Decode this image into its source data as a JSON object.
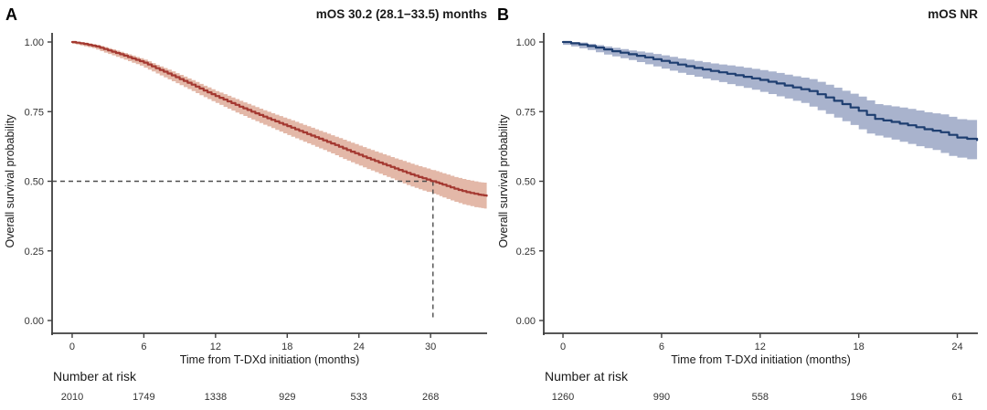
{
  "figure": {
    "background": "#ffffff",
    "axis_color": "#3f3f3f",
    "dash_color": "#4d4d4d"
  },
  "chart_data": [
    {
      "type": "line",
      "subtype": "kaplan-meier-survival",
      "panel_label": "A",
      "title": "mOS 30.2 (28.1−33.5) months",
      "xlabel": "Time from T-DXd initiation (months)",
      "ylabel": "Overall survival probability",
      "xticks": [
        0,
        6,
        12,
        18,
        24,
        30
      ],
      "ytick_labels": [
        "0.00",
        "0.25",
        "0.50",
        "0.75",
        "1.00"
      ],
      "yticks": [
        0,
        0.25,
        0.5,
        0.75,
        1.0
      ],
      "xlim": [
        -1.68,
        34.73
      ],
      "ylim": [
        0,
        1
      ],
      "grid": false,
      "legend": "none",
      "line_color": "#a43931",
      "band_color": "#e3b8a8",
      "median": {
        "time": 30.2,
        "probability": 0.5
      },
      "points": [
        [
          0,
          1.0,
          0.996,
          1.0
        ],
        [
          1,
          0.993,
          0.988,
          0.998
        ],
        [
          2,
          0.984,
          0.978,
          0.99
        ],
        [
          3,
          0.97,
          0.962,
          0.978
        ],
        [
          4,
          0.956,
          0.947,
          0.965
        ],
        [
          5,
          0.941,
          0.931,
          0.951
        ],
        [
          6,
          0.926,
          0.915,
          0.937
        ],
        [
          7,
          0.906,
          0.894,
          0.918
        ],
        [
          8,
          0.887,
          0.873,
          0.901
        ],
        [
          9,
          0.867,
          0.852,
          0.882
        ],
        [
          10,
          0.847,
          0.831,
          0.863
        ],
        [
          11,
          0.826,
          0.809,
          0.843
        ],
        [
          12,
          0.806,
          0.788,
          0.824
        ],
        [
          13,
          0.787,
          0.767,
          0.807
        ],
        [
          14,
          0.768,
          0.747,
          0.789
        ],
        [
          15,
          0.75,
          0.728,
          0.772
        ],
        [
          16,
          0.732,
          0.709,
          0.755
        ],
        [
          17,
          0.715,
          0.691,
          0.739
        ],
        [
          18,
          0.698,
          0.672,
          0.724
        ],
        [
          19,
          0.681,
          0.654,
          0.708
        ],
        [
          20,
          0.664,
          0.636,
          0.692
        ],
        [
          21,
          0.647,
          0.618,
          0.676
        ],
        [
          22,
          0.63,
          0.6,
          0.66
        ],
        [
          23,
          0.612,
          0.58,
          0.644
        ],
        [
          24,
          0.595,
          0.562,
          0.628
        ],
        [
          25,
          0.578,
          0.544,
          0.612
        ],
        [
          26,
          0.562,
          0.527,
          0.597
        ],
        [
          27,
          0.546,
          0.51,
          0.582
        ],
        [
          28,
          0.53,
          0.492,
          0.568
        ],
        [
          29,
          0.515,
          0.476,
          0.554
        ],
        [
          30,
          0.502,
          0.462,
          0.542
        ],
        [
          30.2,
          0.5,
          0.46,
          0.54
        ],
        [
          31,
          0.488,
          0.447,
          0.529
        ],
        [
          32,
          0.473,
          0.431,
          0.515
        ],
        [
          33,
          0.461,
          0.417,
          0.505
        ],
        [
          34,
          0.452,
          0.407,
          0.497
        ],
        [
          34.7,
          0.448,
          0.402,
          0.494
        ]
      ],
      "risk_table": {
        "label": "Number at risk",
        "times": [
          0,
          6,
          12,
          18,
          24,
          30
        ],
        "counts": [
          "2010",
          "1749",
          "1338",
          "929",
          "533",
          "268"
        ]
      }
    },
    {
      "type": "line",
      "subtype": "kaplan-meier-survival",
      "panel_label": "B",
      "title": "mOS NR",
      "xlabel": "Time from T-DXd initiation (months)",
      "ylabel": "Overall survival probability",
      "xticks": [
        0,
        6,
        12,
        18,
        24
      ],
      "ytick_labels": [
        "0.00",
        "0.25",
        "0.50",
        "0.75",
        "1.00"
      ],
      "yticks": [
        0,
        0.25,
        0.5,
        0.75,
        1.0
      ],
      "xlim": [
        -1.17,
        25.25
      ],
      "ylim": [
        0,
        1
      ],
      "grid": false,
      "legend": "none",
      "line_color": "#1e3e70",
      "band_color": "#a9b3cd",
      "median": null,
      "points": [
        [
          0,
          1.0,
          0.996,
          1.0
        ],
        [
          1,
          0.991,
          0.984,
          0.998
        ],
        [
          2,
          0.98,
          0.971,
          0.989
        ],
        [
          3,
          0.967,
          0.955,
          0.979
        ],
        [
          4,
          0.956,
          0.942,
          0.97
        ],
        [
          5,
          0.945,
          0.928,
          0.962
        ],
        [
          6,
          0.932,
          0.912,
          0.952
        ],
        [
          7,
          0.919,
          0.897,
          0.941
        ],
        [
          8,
          0.907,
          0.882,
          0.932
        ],
        [
          9,
          0.896,
          0.869,
          0.923
        ],
        [
          10,
          0.886,
          0.856,
          0.916
        ],
        [
          11,
          0.875,
          0.842,
          0.908
        ],
        [
          12,
          0.864,
          0.829,
          0.899
        ],
        [
          13,
          0.851,
          0.813,
          0.889
        ],
        [
          14,
          0.837,
          0.797,
          0.877
        ],
        [
          15,
          0.824,
          0.781,
          0.867
        ],
        [
          16,
          0.801,
          0.755,
          0.847
        ],
        [
          17,
          0.777,
          0.729,
          0.825
        ],
        [
          18,
          0.753,
          0.702,
          0.804
        ],
        [
          19,
          0.724,
          0.671,
          0.777
        ],
        [
          20,
          0.713,
          0.657,
          0.769
        ],
        [
          21,
          0.701,
          0.642,
          0.76
        ],
        [
          22,
          0.687,
          0.626,
          0.748
        ],
        [
          23,
          0.676,
          0.612,
          0.74
        ],
        [
          24,
          0.657,
          0.591,
          0.723
        ],
        [
          25.2,
          0.648,
          0.579,
          0.717
        ]
      ],
      "risk_table": {
        "label": "Number at risk",
        "times": [
          0,
          6,
          12,
          18,
          24
        ],
        "counts": [
          "1260",
          "990",
          "558",
          "196",
          "61"
        ]
      }
    }
  ]
}
